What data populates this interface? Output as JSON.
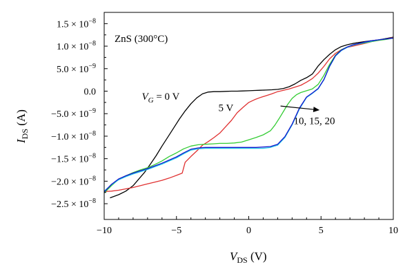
{
  "chart_data": {
    "type": "line",
    "title": "",
    "inset_label": "ZnS (300°C)",
    "xlabel": {
      "main": "V",
      "sub": "DS",
      "unit": " (V)"
    },
    "ylabel": {
      "main": "I",
      "sub": "DS",
      "unit": " (A)"
    },
    "xlim": [
      -10,
      10
    ],
    "ylim": [
      -2.85e-08,
      1.75e-08
    ],
    "x_ticks": [
      {
        "v": -10,
        "label": "−10"
      },
      {
        "v": -5,
        "label": "−5"
      },
      {
        "v": 0,
        "label": "0"
      },
      {
        "v": 5,
        "label": "5"
      },
      {
        "v": 10,
        "label": "10"
      }
    ],
    "y_ticks": [
      {
        "v": 1.5e-08,
        "mant": "1.5 × 10",
        "exp": "−8"
      },
      {
        "v": 1e-08,
        "mant": "1.0 × 10",
        "exp": "−8"
      },
      {
        "v": 5e-09,
        "mant": "5.0 × 10",
        "exp": "−9"
      },
      {
        "v": 0,
        "mant": "0.0",
        "exp": ""
      },
      {
        "v": -5e-09,
        "mant": "−5.0 × 10",
        "exp": "−9"
      },
      {
        "v": -1e-08,
        "mant": "−1.0 × 10",
        "exp": "−8"
      },
      {
        "v": -1.5e-08,
        "mant": "−1.5 × 10",
        "exp": "−8"
      },
      {
        "v": -2e-08,
        "mant": "−2.0 × 10",
        "exp": "−8"
      },
      {
        "v": -2.5e-08,
        "mant": "−2.5 × 10",
        "exp": "−8"
      }
    ],
    "annotations": {
      "vg0": {
        "var": "V",
        "sub": "G",
        "rest": " = 0 V",
        "x": -7.4,
        "y": -1.9e-09
      },
      "v5": {
        "text": "5 V",
        "x": -2.1,
        "y": -4.4e-09
      },
      "rest": {
        "text": "10, 15, 20",
        "x": 3.1,
        "y": -7.3e-09
      },
      "arrow": {
        "x1": 2.2,
        "y1": -3.3e-09,
        "x2": 4.9,
        "y2": -4.2e-09
      }
    },
    "series": [
      {
        "color": "#000000",
        "x": [
          -9.6,
          -9,
          -8.5,
          -8,
          -7.6,
          -7.2,
          -6.8,
          -6.4,
          -6,
          -5.6,
          -5.2,
          -4.8,
          -4.4,
          -4,
          -3.6,
          -3.2,
          -2.8,
          -2.4,
          -2,
          -1.6,
          -1.2,
          -0.8,
          -0.4,
          0,
          0.4,
          0.8,
          1.2,
          1.6,
          2,
          2.4,
          2.8,
          3.2,
          3.6,
          4,
          4.4,
          4.8,
          5.2,
          5.6,
          6,
          6.4,
          6.8,
          7.2,
          7.6,
          8,
          8.5,
          9,
          9.5,
          10
        ],
        "y": [
          -2.37e-08,
          -2.3e-08,
          -2.22e-08,
          -2.1e-08,
          -1.95e-08,
          -1.8e-08,
          -1.62e-08,
          -1.43e-08,
          -1.22e-08,
          -1.02e-08,
          -8.2e-09,
          -6.2e-09,
          -4.4e-09,
          -2.8e-09,
          -1.5e-09,
          -6e-10,
          -2e-10,
          -1e-10,
          -1e-10,
          -5e-11,
          0,
          0,
          5e-11,
          1e-10,
          1.5e-10,
          2e-10,
          2.5e-10,
          3e-10,
          4e-10,
          6e-10,
          1e-09,
          1.6e-09,
          2.4e-09,
          3e-09,
          3.8e-09,
          5.6e-09,
          7e-09,
          8.2e-09,
          9.2e-09,
          9.9e-09,
          1.03e-08,
          1.06e-08,
          1.08e-08,
          1.1e-08,
          1.12e-08,
          1.14e-08,
          1.17e-08,
          1.2e-08
        ]
      },
      {
        "color": "#e03030",
        "x": [
          -10,
          -9.5,
          -9,
          -8.5,
          -8,
          -7.5,
          -7,
          -6.5,
          -6,
          -5.5,
          -5,
          -4.6,
          -4.4,
          -4,
          -3.6,
          -3.2,
          -2.8,
          -2.4,
          -2,
          -1.6,
          -1.2,
          -0.8,
          -0.4,
          0,
          0.4,
          0.8,
          1.2,
          1.6,
          2,
          2.4,
          2.8,
          3.2,
          3.6,
          4,
          4.4,
          4.8,
          5.2,
          5.6,
          6,
          6.4,
          6.8,
          7.2,
          7.6,
          8,
          8.5,
          9,
          9.5,
          10
        ],
        "y": [
          -2.23e-08,
          -2.22e-08,
          -2.2e-08,
          -2.17e-08,
          -2.14e-08,
          -2.1e-08,
          -2.06e-08,
          -2.02e-08,
          -1.98e-08,
          -1.93e-08,
          -1.87e-08,
          -1.82e-08,
          -1.58e-08,
          -1.45e-08,
          -1.33e-08,
          -1.2e-08,
          -1.12e-08,
          -1.03e-08,
          -9.3e-09,
          -7.9e-09,
          -6.5e-09,
          -4.8e-09,
          -3.6e-09,
          -2.5e-09,
          -1.9e-09,
          -1.4e-09,
          -1e-09,
          -6e-10,
          -1e-10,
          2e-10,
          5e-10,
          9e-10,
          1.3e-09,
          2e-09,
          2.8e-09,
          4e-09,
          5.5e-09,
          7.2e-09,
          8.4e-09,
          9.2e-09,
          9.7e-09,
          1e-08,
          1.03e-08,
          1.06e-08,
          1.1e-08,
          1.13e-08,
          1.16e-08,
          1.19e-08
        ]
      },
      {
        "color": "#33cc33",
        "x": [
          -10,
          -9.5,
          -9,
          -8.5,
          -8,
          -7.5,
          -7,
          -6.5,
          -6,
          -5.5,
          -5,
          -4.5,
          -4,
          -3.5,
          -3,
          -2.5,
          -2,
          -1.5,
          -1,
          -0.5,
          0,
          0.5,
          1,
          1.5,
          1.8,
          2.1,
          2.4,
          2.7,
          3,
          3.3,
          3.6,
          4,
          4.4,
          4.8,
          5.2,
          5.6,
          6,
          6.4,
          6.8,
          7.2,
          7.6,
          8,
          8.5,
          9,
          9.5,
          10
        ],
        "y": [
          -2.26e-08,
          -2.1e-08,
          -1.96e-08,
          -1.88e-08,
          -1.81e-08,
          -1.75e-08,
          -1.7e-08,
          -1.63e-08,
          -1.55e-08,
          -1.45e-08,
          -1.37e-08,
          -1.28e-08,
          -1.22e-08,
          -1.19e-08,
          -1.18e-08,
          -1.17e-08,
          -1.16e-08,
          -1.16e-08,
          -1.15e-08,
          -1.13e-08,
          -1.08e-08,
          -1.03e-08,
          -9.7e-09,
          -8.8e-09,
          -7.6e-09,
          -6.1e-09,
          -4.5e-09,
          -2.9e-09,
          -1.6e-09,
          -8e-10,
          -3e-10,
          1e-10,
          5e-10,
          1.5e-09,
          3.5e-09,
          6e-09,
          8e-09,
          9.2e-09,
          9.8e-09,
          1.02e-08,
          1.05e-08,
          1.07e-08,
          1.1e-08,
          1.13e-08,
          1.15e-08,
          1.18e-08
        ]
      },
      {
        "color": "#22c8e8",
        "x": [
          -10,
          -9.5,
          -9,
          -8.5,
          -8,
          -7.5,
          -7,
          -6.5,
          -6,
          -5.5,
          -5,
          -4.5,
          -4,
          -3.5,
          -3,
          -2.5,
          -2,
          -1.5,
          -1,
          -0.5,
          0,
          0.5,
          1,
          1.5,
          2,
          2.5,
          3,
          3.5,
          4,
          4.4,
          4.8,
          5.2,
          5.6,
          6,
          6.4,
          6.8,
          7.2,
          7.6,
          8,
          8.5,
          9,
          9.5,
          10
        ],
        "y": [
          -2.22e-08,
          -2.08e-08,
          -1.97e-08,
          -1.9e-08,
          -1.84e-08,
          -1.79e-08,
          -1.74e-08,
          -1.68e-08,
          -1.62e-08,
          -1.55e-08,
          -1.48e-08,
          -1.39e-08,
          -1.31e-08,
          -1.28e-08,
          -1.27e-08,
          -1.27e-08,
          -1.27e-08,
          -1.27e-08,
          -1.27e-08,
          -1.27e-08,
          -1.27e-08,
          -1.27e-08,
          -1.27e-08,
          -1.25e-08,
          -1.2e-08,
          -1.03e-08,
          -7.5e-09,
          -4e-09,
          -1.4e-09,
          -5e-10,
          5e-10,
          2.5e-09,
          5.5e-09,
          7.8e-09,
          9e-09,
          9.7e-09,
          1.02e-08,
          1.05e-08,
          1.08e-08,
          1.11e-08,
          1.14e-08,
          1.16e-08,
          1.18e-08
        ]
      },
      {
        "color": "#1515cc",
        "x": [
          -10,
          -9.5,
          -9,
          -8.5,
          -8,
          -7.5,
          -7,
          -6.5,
          -6,
          -5.5,
          -5,
          -4.5,
          -4,
          -3.5,
          -3,
          -2.5,
          -2,
          -1.5,
          -1,
          -0.5,
          0,
          0.5,
          1,
          1.5,
          2,
          2.5,
          3,
          3.5,
          4,
          4.4,
          4.8,
          5.2,
          5.6,
          6,
          6.4,
          6.8,
          7.2,
          7.6,
          8,
          8.5,
          9,
          9.5,
          10
        ],
        "y": [
          -2.24e-08,
          -2.07e-08,
          -1.95e-08,
          -1.88e-08,
          -1.82e-08,
          -1.77e-08,
          -1.72e-08,
          -1.66e-08,
          -1.6e-08,
          -1.53e-08,
          -1.46e-08,
          -1.37e-08,
          -1.29e-08,
          -1.26e-08,
          -1.25e-08,
          -1.25e-08,
          -1.25e-08,
          -1.25e-08,
          -1.25e-08,
          -1.25e-08,
          -1.25e-08,
          -1.25e-08,
          -1.24e-08,
          -1.23e-08,
          -1.18e-08,
          -1.01e-08,
          -7.3e-09,
          -3.8e-09,
          -1.3e-09,
          -4e-10,
          6e-10,
          2.6e-09,
          5.6e-09,
          7.9e-09,
          9.1e-09,
          9.8e-09,
          1.03e-08,
          1.06e-08,
          1.09e-08,
          1.12e-08,
          1.14e-08,
          1.16e-08,
          1.18e-08
        ]
      }
    ]
  }
}
